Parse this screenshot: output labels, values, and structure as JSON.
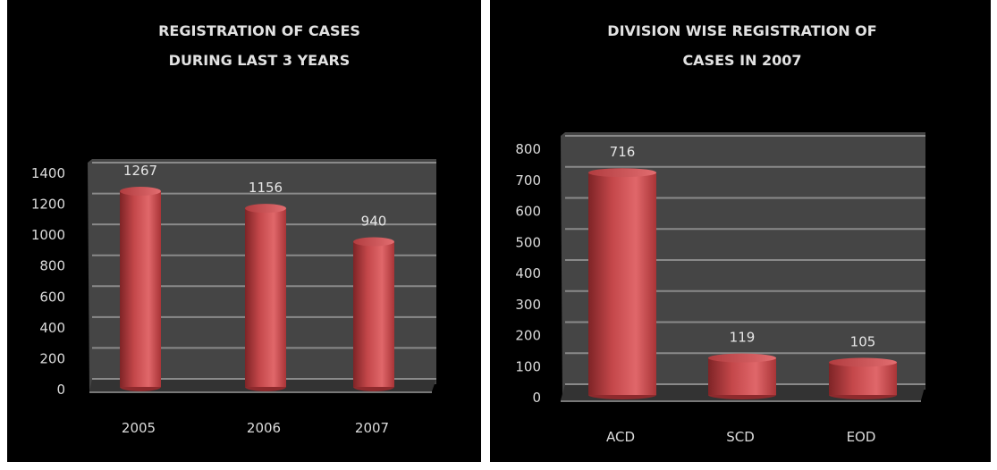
{
  "colors": {
    "background": "#000000",
    "wall": "#454545",
    "grid": "#8a8a8a",
    "bar": "#c9484b",
    "bar_light": "#e06367",
    "bar_dark": "#8e2a2d",
    "text": "#dcdcdc"
  },
  "chart_data": [
    {
      "type": "bar",
      "title": [
        "REGISTRATION OF CASES",
        "DURING LAST 3 YEARS"
      ],
      "categories": [
        "2005",
        "2006",
        "2007"
      ],
      "values": [
        1267,
        1156,
        940
      ],
      "yticks": [
        "0",
        "200",
        "400",
        "600",
        "800",
        "1000",
        "1200",
        "1400"
      ],
      "ylim": [
        0,
        1400
      ],
      "xlabel": "",
      "ylabel": "",
      "grid": true
    },
    {
      "type": "bar",
      "title": [
        "DIVISION WISE REGISTRATION OF",
        "CASES IN 2007"
      ],
      "categories": [
        "ACD",
        "SCD",
        "EOD"
      ],
      "values": [
        716,
        119,
        105
      ],
      "yticks": [
        "0",
        "100",
        "200",
        "300",
        "400",
        "500",
        "600",
        "700",
        "800"
      ],
      "ylim": [
        0,
        800
      ],
      "xlabel": "",
      "ylabel": "",
      "grid": true
    }
  ]
}
